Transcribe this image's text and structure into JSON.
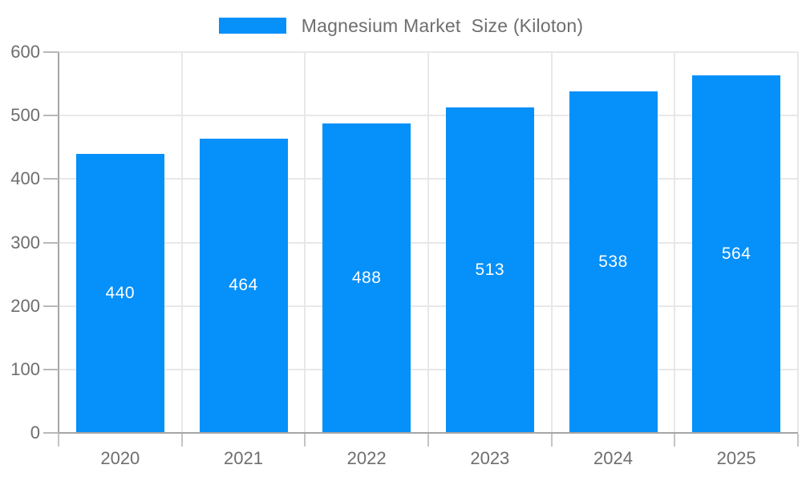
{
  "chart_data": {
    "type": "bar",
    "title": "Magnesium Market  Size (Kiloton)",
    "categories": [
      "2020",
      "2021",
      "2022",
      "2023",
      "2024",
      "2025"
    ],
    "values": [
      440,
      464,
      488,
      513,
      538,
      564
    ],
    "series": [
      {
        "name": "Magnesium Market  Size (Kiloton)",
        "values": [
          440,
          464,
          488,
          513,
          538,
          564
        ]
      }
    ],
    "xlabel": "",
    "ylabel": "",
    "ylim": [
      0,
      600
    ],
    "yticks": [
      0,
      100,
      200,
      300,
      400,
      500,
      600
    ],
    "grid": true,
    "legend_position": "top-center",
    "bar_color": "#0590fa",
    "value_label_color": "#ffffff",
    "axis_text_color": "#6e6e6e"
  }
}
